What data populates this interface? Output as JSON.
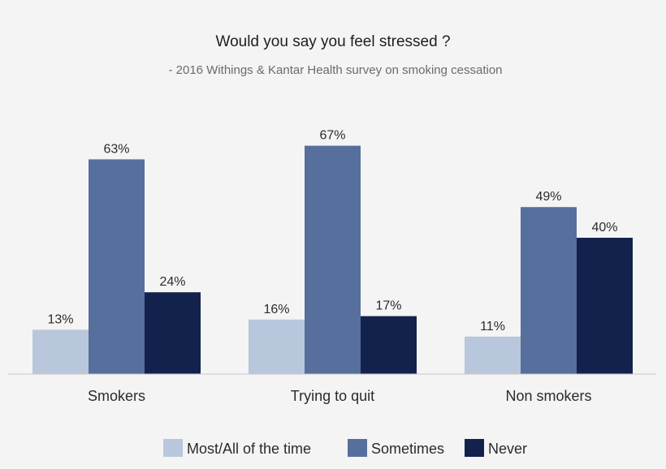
{
  "chart_data": {
    "type": "bar",
    "title": "Would you say you feel stressed ?",
    "subtitle": "- 2016 Withings & Kantar Health survey on smoking cessation",
    "categories": [
      "Smokers",
      "Trying to quit",
      "Non smokers"
    ],
    "series": [
      {
        "name": "Most/All of the time",
        "values": [
          13,
          16,
          11
        ],
        "labels": [
          "13%",
          "16%",
          "11%"
        ],
        "color": "#b8c7dc"
      },
      {
        "name": "Sometimes",
        "values": [
          63,
          67,
          49
        ],
        "labels": [
          "63%",
          "67%",
          "49%"
        ],
        "color": "#566f9c"
      },
      {
        "name": "Never",
        "values": [
          24,
          17,
          40
        ],
        "labels": [
          "24%",
          "17%",
          "40%"
        ],
        "color": "#13224d"
      }
    ],
    "ylim": [
      0,
      100
    ],
    "xlabel": "",
    "ylabel": "",
    "grid": false,
    "legend": "bottom"
  }
}
